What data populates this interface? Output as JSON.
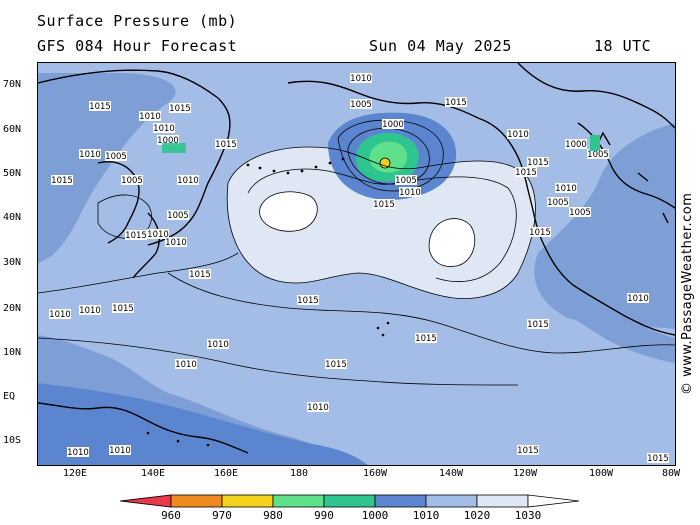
{
  "header": {
    "title": "Surface Pressure (mb)",
    "subtitle": "GFS 084 Hour Forecast",
    "date": "Sun 04 May 2025",
    "time": "18 UTC"
  },
  "map": {
    "latitude_labels": [
      "70N",
      "60N",
      "50N",
      "40N",
      "30N",
      "20N",
      "10N",
      "EQ",
      "10S"
    ],
    "longitude_labels": [
      "120E",
      "140E",
      "160E",
      "180",
      "160W",
      "140W",
      "120W",
      "100W",
      "80W"
    ],
    "isobar_labels": [
      "1015",
      "1015",
      "1010",
      "1010",
      "1000",
      "1015",
      "1010",
      "1005",
      "1005",
      "1010",
      "1005",
      "1015",
      "1015",
      "1010",
      "1010",
      "1015",
      "1015",
      "1010",
      "1005",
      "1000",
      "1005",
      "1010",
      "1015",
      "1015",
      "1000",
      "1005",
      "1015",
      "1005",
      "1010",
      "1015",
      "1015",
      "1010",
      "1005",
      "1015",
      "1010",
      "1010",
      "1010",
      "1015",
      "1015",
      "1010",
      "1015",
      "1010",
      "1010",
      "1010",
      "1015",
      "1010",
      "1015"
    ],
    "colors": {
      "below_960": "#e8384a",
      "960_970": "#ef8a20",
      "970_980": "#f2d21a",
      "980_990": "#5fe08a",
      "990_1000": "#2ec58f",
      "1000_1010": "#5b86cf",
      "1010_1020": "#a3bde6",
      "1020_1030": "#dfe7f5",
      "above_1030": "#ffffff"
    }
  },
  "colorbar": {
    "labels": [
      "960",
      "970",
      "980",
      "990",
      "1000",
      "1010",
      "1020",
      "1030"
    ],
    "colors": [
      "#e8384a",
      "#ef8a20",
      "#f2d21a",
      "#5fe08a",
      "#2ec58f",
      "#5b86cf",
      "#a3bde6",
      "#dfe7f5",
      "#ffffff"
    ]
  },
  "watermark": "© www.PassageWeather.com"
}
